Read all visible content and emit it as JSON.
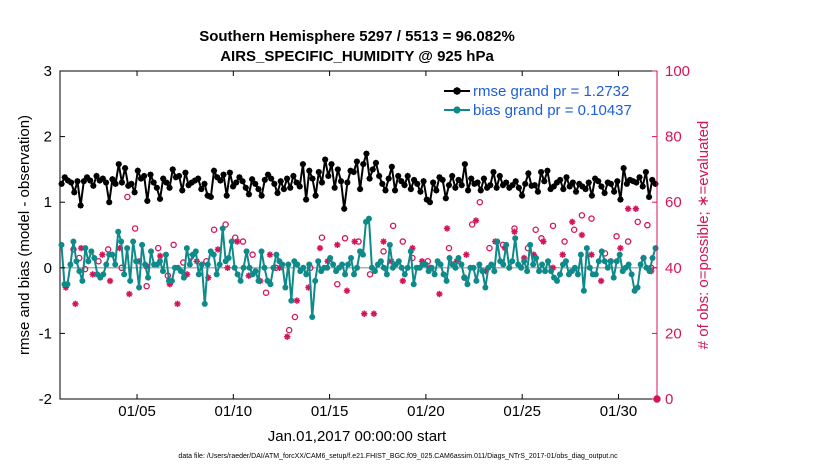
{
  "chart_data": {
    "type": "line",
    "title": "Southern Hemisphere 5297 / 5513 = 96.082%",
    "subtitle": "AIRS_SPECIFIC_HUMIDITY @ 925 hPa",
    "ylabel_left": "rmse and bias (model - observation)",
    "ylabel_right": "# of obs: o=possible; ∗=evaluated",
    "xlabel": "Jan.01,2017 00:00:00 start",
    "footnote": "data file: /Users/raeder/DAI/ATM_forcXX/CAM6_setup/f.e21.FHIST_BGC.f09_025.CAM6assim.011/Diags_NTrS_2017-01/obs_diag_output.nc",
    "ylim_left": [
      -2,
      3
    ],
    "ylim_right": [
      0,
      100
    ],
    "xlim": [
      1.0,
      32.0
    ],
    "yticks_left": [
      "-2",
      "-1",
      "0",
      "1",
      "2",
      "3"
    ],
    "yticks_right": [
      "0",
      "20",
      "40",
      "60",
      "80",
      "100"
    ],
    "xticks": [
      "01/05",
      "01/10",
      "01/15",
      "01/20",
      "01/25",
      "01/30"
    ],
    "xtick_days": [
      5,
      10,
      15,
      20,
      25,
      30
    ],
    "colors": {
      "rmse": "#000000",
      "bias": "#0e8a8a",
      "obs": "#d4145a",
      "legend_text": "#1f5fd6",
      "zero_line": "#b0b0b0"
    },
    "series": [
      {
        "name": "rmse grand pr = 1.2732",
        "values": [
          1.28,
          1.38,
          1.33,
          1.3,
          1.15,
          1.32,
          0.95,
          1.32,
          1.38,
          1.33,
          1.25,
          1.4,
          1.33,
          1.36,
          1.3,
          1.0,
          1.35,
          1.28,
          1.58,
          1.3,
          1.52,
          1.25,
          1.28,
          1.15,
          1.48,
          1.36,
          1.4,
          1.02,
          1.42,
          1.3,
          1.22,
          1.05,
          1.36,
          1.3,
          1.22,
          1.5,
          1.38,
          1.4,
          1.18,
          1.45,
          1.26,
          1.3,
          1.33,
          1.36,
          1.2,
          1.28,
          1.1,
          1.08,
          1.48,
          1.38,
          1.33,
          1.42,
          1.1,
          1.45,
          1.24,
          1.3,
          1.38,
          1.32,
          1.22,
          1.12,
          1.35,
          1.28,
          1.2,
          1.1,
          1.34,
          1.42,
          1.36,
          1.28,
          1.14,
          1.32,
          1.2,
          1.36,
          1.22,
          1.4,
          1.3,
          1.24,
          1.58,
          1.04,
          1.48,
          1.36,
          1.1,
          1.46,
          1.3,
          1.65,
          1.4,
          1.58,
          1.22,
          1.5,
          1.32,
          0.9,
          1.3,
          1.48,
          1.46,
          1.62,
          1.2,
          1.58,
          1.74,
          1.36,
          1.5,
          1.6,
          1.4,
          1.28,
          1.18,
          1.36,
          1.54,
          1.18,
          1.4,
          1.32,
          1.26,
          1.4,
          1.2,
          1.34,
          1.28,
          1.16,
          1.32,
          1.04,
          1.0,
          1.3,
          1.18,
          1.38,
          1.34,
          1.06,
          1.26,
          1.4,
          1.22,
          1.34,
          1.26,
          1.58,
          1.18,
          1.36,
          1.28,
          1.3,
          1.18,
          1.36,
          1.22,
          1.26,
          1.46,
          1.22,
          1.4,
          1.26,
          1.3,
          1.22,
          1.26,
          1.32,
          1.22,
          1.1,
          1.28,
          1.44,
          1.25,
          1.26,
          1.16,
          1.46,
          1.32,
          1.48,
          1.2,
          1.24,
          1.3,
          1.34,
          1.2,
          1.38,
          1.24,
          1.3,
          1.16,
          1.28,
          1.24,
          1.2,
          1.3,
          1.1,
          1.36,
          1.32,
          1.24,
          1.14,
          1.3,
          1.28,
          1.16,
          1.32,
          1.04,
          1.52,
          1.28,
          1.34,
          1.32,
          1.3,
          1.38,
          1.24,
          1.46,
          1.08,
          1.34,
          1.28
        ]
      },
      {
        "name": "bias grand pr = 0.10437",
        "values": [
          0.35,
          -0.25,
          -0.25,
          0.05,
          0.4,
          0.1,
          -0.05,
          -0.2,
          0.3,
          0.1,
          0.25,
          0.15,
          -0.1,
          -0.15,
          -0.1,
          0.05,
          0.2,
          0.2,
          0.05,
          0.55,
          0.4,
          -0.1,
          0.3,
          -0.2,
          0.4,
          0.1,
          -0.3,
          0.35,
          0.05,
          -0.15,
          0.25,
          0.05,
          0.05,
          0.1,
          -0.05,
          0.2,
          -0.2,
          -0.2,
          0.0,
          0.0,
          -0.05,
          -0.15,
          0.3,
          0.05,
          0.2,
          0.25,
          -0.1,
          0.05,
          -0.55,
          0.05,
          0.25,
          0.2,
          -0.1,
          0.05,
          0.6,
          0.1,
          0.15,
          0.4,
          0.0,
          -0.1,
          -0.2,
          0.0,
          0.25,
          0.0,
          -0.1,
          -0.05,
          -0.2,
          0.25,
          0.0,
          -0.2,
          -0.25,
          0.0,
          0.2,
          0.1,
          0.05,
          -0.3,
          0.05,
          -0.5,
          0.1,
          0.05,
          -0.05,
          0.0,
          -0.1,
          0.05,
          -0.75,
          -0.2,
          0.1,
          -0.05,
          0.0,
          0.0,
          0.15,
          0.05,
          -0.05,
          0.0,
          0.05,
          -0.1,
          0.05,
          0.15,
          -0.1,
          0.0,
          0.25,
          0.2,
          0.7,
          0.75,
          0.0,
          -0.05,
          0.05,
          0.1,
          0.0,
          -0.1,
          0.35,
          0.0,
          0.05,
          0.1,
          0.0,
          -0.1,
          0.0,
          0.25,
          -0.25,
          0.0,
          0.0,
          0.05,
          0.05,
          -0.05,
          0.0,
          -0.1,
          0.1,
          0.05,
          -0.1,
          -0.2,
          0.15,
          0.05,
          0.0,
          0.15,
          0.05,
          -0.15,
          -0.25,
          0.0,
          0.0,
          -0.2,
          0.05,
          -0.05,
          -0.3,
          0.0,
          0.05,
          -0.05,
          0.4,
          0.1,
          0.05,
          0.35,
          0.0,
          0.1,
          0.45,
          0.05,
          0.0,
          0.1,
          -0.05,
          0.35,
          0.05,
          0.15,
          -0.05,
          0.05,
          -0.05,
          0.1,
          -0.05,
          -0.15,
          -0.2,
          -0.1,
          0.05,
          0.1,
          -0.1,
          -0.05,
          0.0,
          -0.1,
          0.2,
          -0.35,
          0.3,
          0.0,
          -0.1,
          -0.1,
          0.1,
          0.25,
          0.1,
          0.0,
          0.1,
          -0.15,
          0.1,
          0.2,
          -0.05,
          0.0,
          0.05,
          -0.1,
          -0.35,
          -0.3,
          0.05,
          0.15,
          0.0,
          -0.05,
          0.15,
          0.3
        ]
      }
    ],
    "obs_possible": [
      [
        1.7,
        0.28
      ],
      [
        2.0,
        0.15
      ],
      [
        2.3,
        -0.02
      ],
      [
        3.0,
        0.1
      ],
      [
        3.5,
        0.28
      ],
      [
        4.2,
        0.0
      ],
      [
        4.5,
        1.08
      ],
      [
        4.9,
        0.6
      ],
      [
        5.5,
        -0.28
      ],
      [
        6.1,
        0.3
      ],
      [
        6.6,
        -0.12
      ],
      [
        6.9,
        0.35
      ],
      [
        7.4,
        0.08
      ],
      [
        7.8,
        0.17
      ],
      [
        8.6,
        0.1
      ],
      [
        9.0,
        0.58
      ],
      [
        9.6,
        0.66
      ],
      [
        10.1,
        0.46
      ],
      [
        10.5,
        0.4
      ],
      [
        11.0,
        0.2
      ],
      [
        11.7,
        -0.38
      ],
      [
        12.2,
        0.0
      ],
      [
        12.9,
        -0.95
      ],
      [
        13.2,
        -0.75
      ],
      [
        14.0,
        0.0
      ],
      [
        14.6,
        0.46
      ],
      [
        15.4,
        -0.25
      ],
      [
        15.8,
        0.45
      ],
      [
        16.5,
        0.4
      ],
      [
        17.1,
        -0.1
      ],
      [
        17.8,
        0.25
      ],
      [
        18.3,
        0.64
      ],
      [
        18.8,
        0.4
      ],
      [
        19.3,
        0.15
      ],
      [
        20.1,
        0.1
      ],
      [
        21.2,
        0.3
      ],
      [
        22.0,
        -0.15
      ],
      [
        22.4,
        0.66
      ],
      [
        22.8,
        1.0
      ],
      [
        23.3,
        0.3
      ],
      [
        24.0,
        0.35
      ],
      [
        24.6,
        0.6
      ],
      [
        25.3,
        0.3
      ],
      [
        25.7,
        0.58
      ],
      [
        26.0,
        0.45
      ],
      [
        26.6,
        0.64
      ],
      [
        27.2,
        0.4
      ],
      [
        27.7,
        0.58
      ],
      [
        28.1,
        0.8
      ],
      [
        28.6,
        0.75
      ],
      [
        29.3,
        0.22
      ],
      [
        29.9,
        0.48
      ],
      [
        30.5,
        0.4
      ],
      [
        31.0,
        0.7
      ],
      [
        31.5,
        0.65
      ],
      [
        31.7,
        0.0
      ]
    ],
    "obs_evaluated": [
      [
        1.3,
        -0.3
      ],
      [
        1.8,
        -0.55
      ],
      [
        2.1,
        0.3
      ],
      [
        2.7,
        -0.1
      ],
      [
        3.2,
        0.2
      ],
      [
        3.6,
        -0.2
      ],
      [
        4.1,
        0.3
      ],
      [
        4.6,
        -0.4
      ],
      [
        5.1,
        0.1
      ],
      [
        5.5,
        0.02
      ],
      [
        6.2,
        0.18
      ],
      [
        6.7,
        -0.25
      ],
      [
        7.1,
        -0.55
      ],
      [
        7.6,
        -0.1
      ],
      [
        8.1,
        0.1
      ],
      [
        8.7,
        -0.15
      ],
      [
        9.2,
        0.28
      ],
      [
        9.7,
        0.0
      ],
      [
        10.2,
        0.4
      ],
      [
        10.8,
        -0.12
      ],
      [
        11.4,
        -0.2
      ],
      [
        11.9,
        0.2
      ],
      [
        12.4,
        0.0
      ],
      [
        12.8,
        -1.05
      ],
      [
        13.3,
        -0.5
      ],
      [
        13.9,
        -0.3
      ],
      [
        14.5,
        0.3
      ],
      [
        14.9,
        0.1
      ],
      [
        15.4,
        0.35
      ],
      [
        15.9,
        -0.35
      ],
      [
        16.3,
        0.4
      ],
      [
        16.8,
        -0.7
      ],
      [
        17.3,
        -0.7
      ],
      [
        17.8,
        0.4
      ],
      [
        18.2,
        0.1
      ],
      [
        18.8,
        -0.2
      ],
      [
        19.3,
        0.3
      ],
      [
        19.8,
        0.1
      ],
      [
        20.2,
        0.0
      ],
      [
        20.7,
        -0.4
      ],
      [
        21.1,
        0.6
      ],
      [
        21.6,
        0.1
      ],
      [
        22.1,
        0.2
      ],
      [
        22.6,
        0.72
      ],
      [
        23.1,
        -0.05
      ],
      [
        23.6,
        0.4
      ],
      [
        24.1,
        0.3
      ],
      [
        24.6,
        0.55
      ],
      [
        25.1,
        0.15
      ],
      [
        25.6,
        0.2
      ],
      [
        26.1,
        0.4
      ],
      [
        26.6,
        0.0
      ],
      [
        27.1,
        0.2
      ],
      [
        27.6,
        0.7
      ],
      [
        28.1,
        0.5
      ],
      [
        28.6,
        0.2
      ],
      [
        29.1,
        -0.2
      ],
      [
        29.6,
        0.1
      ],
      [
        30.1,
        0.3
      ],
      [
        30.5,
        0.9
      ],
      [
        30.9,
        0.9
      ],
      [
        31.3,
        0.15
      ],
      [
        31.7,
        -0.05
      ]
    ]
  }
}
